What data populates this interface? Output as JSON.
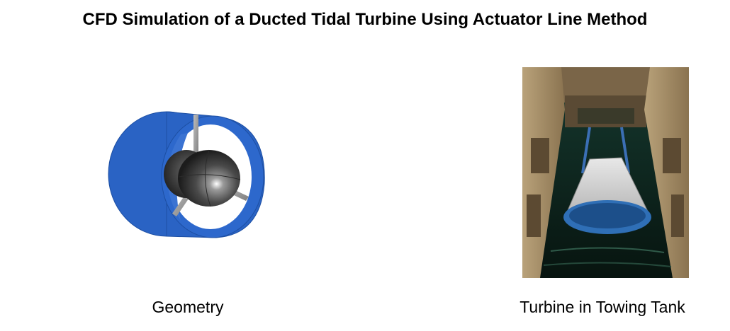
{
  "slide": {
    "title": "CFD Simulation of a Ducted Tidal Turbine Using Actuator Line Method"
  },
  "figures": [
    {
      "caption": "Geometry"
    },
    {
      "caption": "Turbine in Towing Tank"
    }
  ],
  "colors": {
    "duct_blue": "#2a63c4",
    "hub_gray": "#3a3a3a",
    "tank_water": "#0e2a22"
  }
}
